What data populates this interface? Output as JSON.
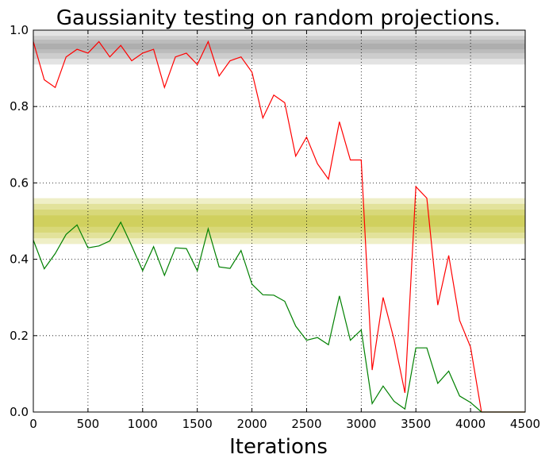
{
  "chart_data": {
    "type": "line",
    "title": "Gaussianity testing on random projections.",
    "xlabel": "Iterations",
    "ylabel": "",
    "xlim": [
      0,
      4500
    ],
    "ylim": [
      0.0,
      1.0
    ],
    "grid": true,
    "xticks": [
      0,
      500,
      1000,
      1500,
      2000,
      2500,
      3000,
      3500,
      4000,
      4500
    ],
    "xtick_labels": [
      "0",
      "500",
      "1000",
      "1500",
      "2000",
      "2500",
      "3000",
      "3500",
      "4000",
      "4500"
    ],
    "yticks": [
      0.0,
      0.2,
      0.4,
      0.6,
      0.8,
      1.0
    ],
    "ytick_labels": [
      "0.0",
      "0.2",
      "0.4",
      "0.6",
      "0.8",
      "1.0"
    ],
    "bands": [
      {
        "color": "#808080",
        "levels": [
          [
            0.91,
            1.0
          ],
          [
            0.925,
            0.985
          ],
          [
            0.94,
            0.975
          ],
          [
            0.95,
            0.965
          ]
        ]
      },
      {
        "color": "#b8b800",
        "levels": [
          [
            0.44,
            0.56
          ],
          [
            0.455,
            0.545
          ],
          [
            0.47,
            0.53
          ],
          [
            0.485,
            0.515
          ]
        ]
      }
    ],
    "x": [
      0,
      100,
      200,
      300,
      400,
      500,
      600,
      700,
      800,
      900,
      1000,
      1100,
      1200,
      1300,
      1400,
      1500,
      1600,
      1700,
      1800,
      1900,
      2000,
      2100,
      2200,
      2300,
      2400,
      2500,
      2600,
      2700,
      2800,
      2900,
      3000,
      3100,
      3200,
      3300,
      3400,
      3500,
      3600,
      3700,
      3800,
      3900,
      4000,
      4100,
      4200,
      4300,
      4400,
      4500
    ],
    "series": [
      {
        "color": "#ff0000",
        "values": [
          0.97,
          0.87,
          0.85,
          0.93,
          0.95,
          0.94,
          0.97,
          0.93,
          0.96,
          0.92,
          0.94,
          0.95,
          0.85,
          0.93,
          0.94,
          0.91,
          0.97,
          0.88,
          0.92,
          0.93,
          0.89,
          0.77,
          0.83,
          0.81,
          0.67,
          0.72,
          0.65,
          0.61,
          0.76,
          0.66,
          0.66,
          0.11,
          0.3,
          0.19,
          0.05,
          0.59,
          0.56,
          0.28,
          0.41,
          0.24,
          0.17,
          0.0,
          0.0,
          0.0,
          0.0,
          0.0
        ]
      },
      {
        "color": "#008000",
        "values": [
          0.45,
          0.375,
          0.415,
          0.465,
          0.49,
          0.43,
          0.435,
          0.448,
          0.497,
          0.435,
          0.37,
          0.433,
          0.358,
          0.43,
          0.428,
          0.37,
          0.48,
          0.38,
          0.376,
          0.423,
          0.335,
          0.307,
          0.306,
          0.29,
          0.225,
          0.188,
          0.195,
          0.176,
          0.304,
          0.188,
          0.215,
          0.022,
          0.068,
          0.028,
          0.008,
          0.168,
          0.168,
          0.075,
          0.107,
          0.042,
          0.025,
          0.0,
          0.0,
          0.0,
          0.0,
          0.0
        ]
      }
    ]
  }
}
